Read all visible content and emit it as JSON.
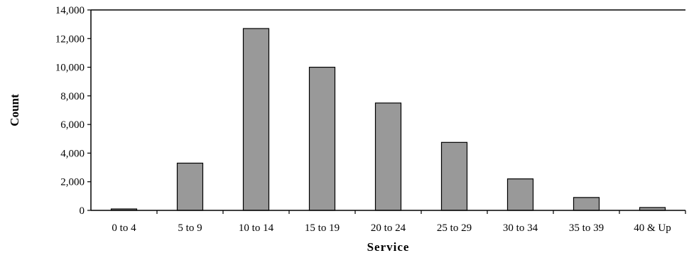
{
  "chart_data": {
    "type": "bar",
    "title": "",
    "xlabel": "Service",
    "ylabel": "Count",
    "categories": [
      "0 to 4",
      "5 to 9",
      "10 to 14",
      "15 to 19",
      "20 to 24",
      "25 to 29",
      "30 to 34",
      "35 to 39",
      "40 & Up"
    ],
    "values": [
      100,
      3300,
      12700,
      10000,
      7500,
      4750,
      2200,
      900,
      200
    ],
    "ylim": [
      0,
      14000
    ],
    "yticks": [
      0,
      2000,
      4000,
      6000,
      8000,
      10000,
      12000,
      14000
    ],
    "ytick_labels": [
      "0",
      "2,000",
      "4,000",
      "6,000",
      "8,000",
      "10,000",
      "12,000",
      "14,000"
    ],
    "grid": false,
    "legend": "none",
    "colors": {
      "bar_fill": "#999999",
      "bar_stroke": "#000000",
      "axis": "#000000"
    }
  }
}
